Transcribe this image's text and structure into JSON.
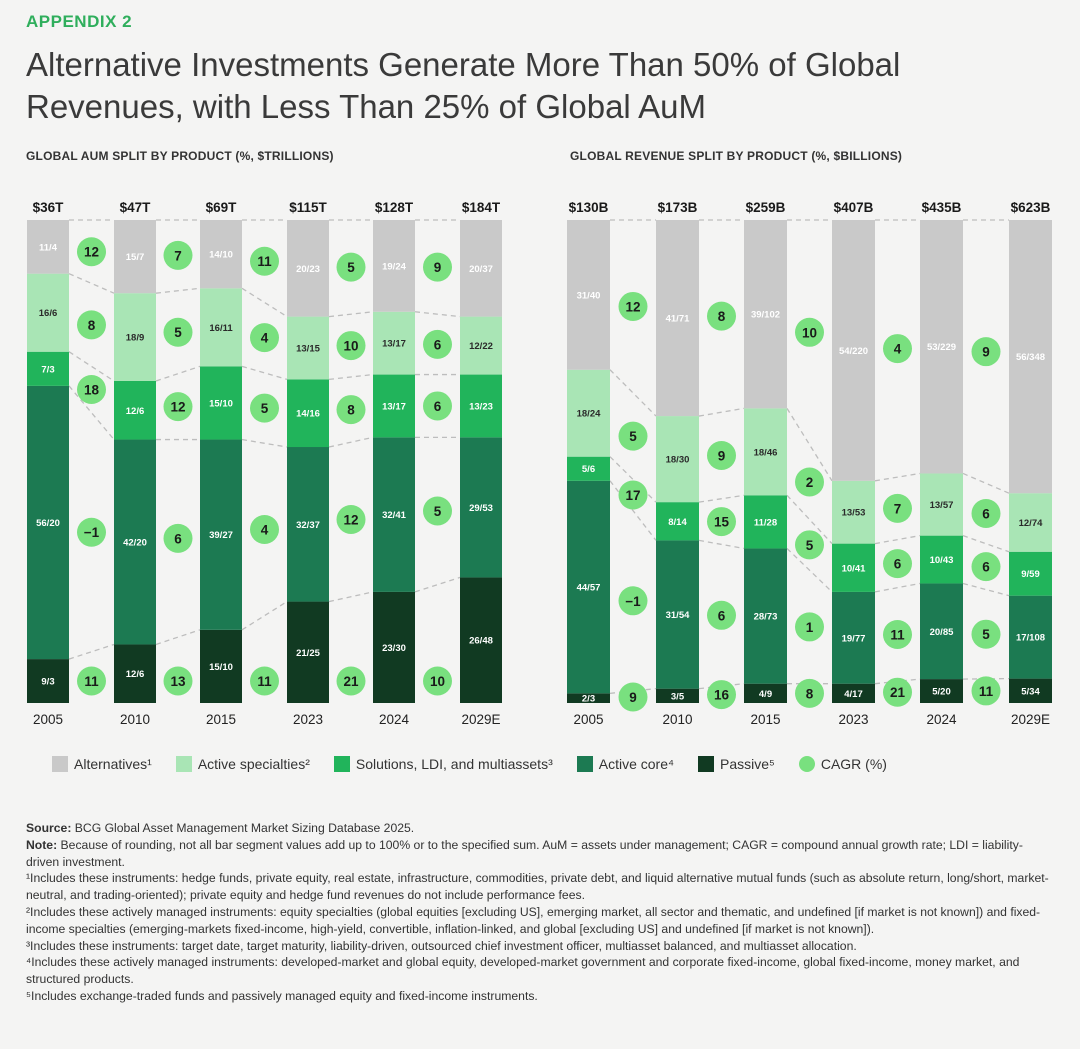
{
  "header": {
    "appendix": "APPENDIX 2",
    "title_line1": "Alternative Investments Generate More Than 50% of Global",
    "title_line2": "Revenues, with Less Than 25% of Global AuM"
  },
  "colors": {
    "alternatives": "#c9c9c9",
    "active_specialties": "#a9e5b5",
    "solutions": "#21b45b",
    "active_core": "#1c7a52",
    "passive": "#113a22",
    "cagr": "#79e07f"
  },
  "legend": [
    {
      "label": "Alternatives¹",
      "color": "#c9c9c9",
      "shape": "square"
    },
    {
      "label": "Active specialties²",
      "color": "#a9e5b5",
      "shape": "square"
    },
    {
      "label": "Solutions, LDI, and multiassets³",
      "color": "#21b45b",
      "shape": "square"
    },
    {
      "label": "Active core⁴",
      "color": "#1c7a52",
      "shape": "square"
    },
    {
      "label": "Passive⁵",
      "color": "#113a22",
      "shape": "square"
    },
    {
      "label": "CAGR (%)",
      "color": "#79e07f",
      "shape": "circle"
    }
  ],
  "chart_data": [
    {
      "type": "bar",
      "stacked": true,
      "title": "GLOBAL AUM SPLIT BY PRODUCT (%, $TRILLIONS)",
      "categories": [
        "2005",
        "2010",
        "2015",
        "2023",
        "2024",
        "2029E"
      ],
      "totals": [
        "$36T",
        "$47T",
        "$69T",
        "$115T",
        "$128T",
        "$184T"
      ],
      "series": [
        {
          "name": "Passive",
          "percent": [
            9,
            12,
            15,
            21,
            23,
            26
          ],
          "labels": [
            "9/3",
            "12/6",
            "15/10",
            "21/25",
            "23/30",
            "26/48"
          ]
        },
        {
          "name": "Active core",
          "percent": [
            56,
            42,
            39,
            32,
            32,
            29
          ],
          "labels": [
            "56/20",
            "42/20",
            "39/27",
            "32/37",
            "32/41",
            "29/53"
          ]
        },
        {
          "name": "Solutions, LDI, and multiassets",
          "percent": [
            7,
            12,
            15,
            14,
            13,
            13
          ],
          "labels": [
            "7/3",
            "12/6",
            "15/10",
            "14/16",
            "13/17",
            "13/23"
          ]
        },
        {
          "name": "Active specialties",
          "percent": [
            16,
            18,
            16,
            13,
            13,
            12
          ],
          "labels": [
            "16/6",
            "18/9",
            "16/11",
            "13/15",
            "13/17",
            "12/22"
          ]
        },
        {
          "name": "Alternatives",
          "percent": [
            11,
            15,
            14,
            20,
            19,
            20
          ],
          "labels": [
            "11/4",
            "15/7",
            "14/10",
            "20/23",
            "19/24",
            "20/37"
          ]
        }
      ],
      "cagr": {
        "Passive": [
          11,
          13,
          11,
          21,
          10
        ],
        "Active core": [
          -1,
          6,
          4,
          12,
          5
        ],
        "Solutions, LDI, and multiassets": [
          18,
          12,
          5,
          8,
          6
        ],
        "Active specialties": [
          8,
          5,
          4,
          10,
          6
        ],
        "Alternatives": [
          12,
          7,
          11,
          5,
          9
        ]
      },
      "cagr_display": {
        "Passive": [
          "11",
          "13",
          "11",
          "21",
          "10"
        ],
        "Active core": [
          "−1",
          "6",
          "4",
          "12",
          "5"
        ],
        "Solutions, LDI, and multiassets": [
          "18",
          "12",
          "5",
          "8",
          "6"
        ],
        "Active specialties": [
          "8",
          "5",
          "4",
          "10",
          "6"
        ],
        "Alternatives": [
          "12",
          "7",
          "11",
          "5",
          "9"
        ]
      }
    },
    {
      "type": "bar",
      "stacked": true,
      "title": "GLOBAL REVENUE SPLIT BY PRODUCT (%, $BILLIONS)",
      "categories": [
        "2005",
        "2010",
        "2015",
        "2023",
        "2024",
        "2029E"
      ],
      "totals": [
        "$130B",
        "$173B",
        "$259B",
        "$407B",
        "$435B",
        "$623B"
      ],
      "series": [
        {
          "name": "Passive",
          "percent": [
            2,
            3,
            4,
            4,
            5,
            5
          ],
          "labels": [
            "2/3",
            "3/5",
            "4/9",
            "4/17",
            "5/20",
            "5/34"
          ]
        },
        {
          "name": "Active core",
          "percent": [
            44,
            31,
            28,
            19,
            20,
            17
          ],
          "labels": [
            "44/57",
            "31/54",
            "28/73",
            "19/77",
            "20/85",
            "17/108"
          ]
        },
        {
          "name": "Solutions, LDI, and multiassets",
          "percent": [
            5,
            8,
            11,
            10,
            10,
            9
          ],
          "labels": [
            "5/6",
            "8/14",
            "11/28",
            "10/41",
            "10/43",
            "9/59"
          ]
        },
        {
          "name": "Active specialties",
          "percent": [
            18,
            18,
            18,
            13,
            13,
            12
          ],
          "labels": [
            "18/24",
            "18/30",
            "18/46",
            "13/53",
            "13/57",
            "12/74"
          ]
        },
        {
          "name": "Alternatives",
          "percent": [
            31,
            41,
            39,
            54,
            53,
            56
          ],
          "labels": [
            "31/40",
            "41/71",
            "39/102",
            "54/220",
            "53/229",
            "56/348"
          ]
        }
      ],
      "cagr": {
        "Passive": [
          9,
          16,
          8,
          21,
          11
        ],
        "Active core": [
          -1,
          6,
          1,
          11,
          5
        ],
        "Solutions, LDI, and multiassets": [
          17,
          15,
          5,
          6,
          6
        ],
        "Active specialties": [
          5,
          9,
          2,
          7,
          6
        ],
        "Alternatives": [
          12,
          8,
          10,
          4,
          9
        ]
      },
      "cagr_display": {
        "Passive": [
          "9",
          "16",
          "8",
          "21",
          "11"
        ],
        "Active core": [
          "−1",
          "6",
          "1",
          "11",
          "5"
        ],
        "Solutions, LDI, and multiassets": [
          "17",
          "15",
          "5",
          "6",
          "6"
        ],
        "Active specialties": [
          "5",
          "9",
          "2",
          "7",
          "6"
        ],
        "Alternatives": [
          "12",
          "8",
          "10",
          "4",
          "9"
        ]
      }
    }
  ],
  "notes": {
    "source_label": "Source:",
    "source_text": " BCG Global Asset Management Market Sizing Database 2025.",
    "note_label": "Note:",
    "note_text": " Because of rounding, not all bar segment values add up to 100% or to the specified sum. AuM = assets under management; CAGR = compound annual growth rate; LDI = liability-driven investment.",
    "footnote1": "¹Includes these instruments: hedge funds, private equity, real estate, infrastructure, commodities, private debt, and liquid alternative mutual funds (such as absolute return, long/short, market-neutral, and trading-oriented); private equity and hedge fund revenues do not include performance fees.",
    "footnote2": "²Includes these actively managed instruments: equity specialties (global equities [excluding US], emerging market, all sector and thematic, and undefined [if market is not known]) and fixed-income specialties (emerging-markets fixed-income, high-yield, convertible, inflation-linked, and global [excluding US] and undefined [if market is not known]).",
    "footnote3": "³Includes these instruments: target date, target maturity, liability-driven, outsourced chief investment officer, multiasset balanced, and multiasset allocation.",
    "footnote4": "⁴Includes these actively managed instruments: developed-market and global equity, developed-market government and corporate fixed-income, global fixed-income, money market, and structured products.",
    "footnote5": "⁵Includes exchange-traded funds and passively managed equity and fixed-income instruments."
  }
}
